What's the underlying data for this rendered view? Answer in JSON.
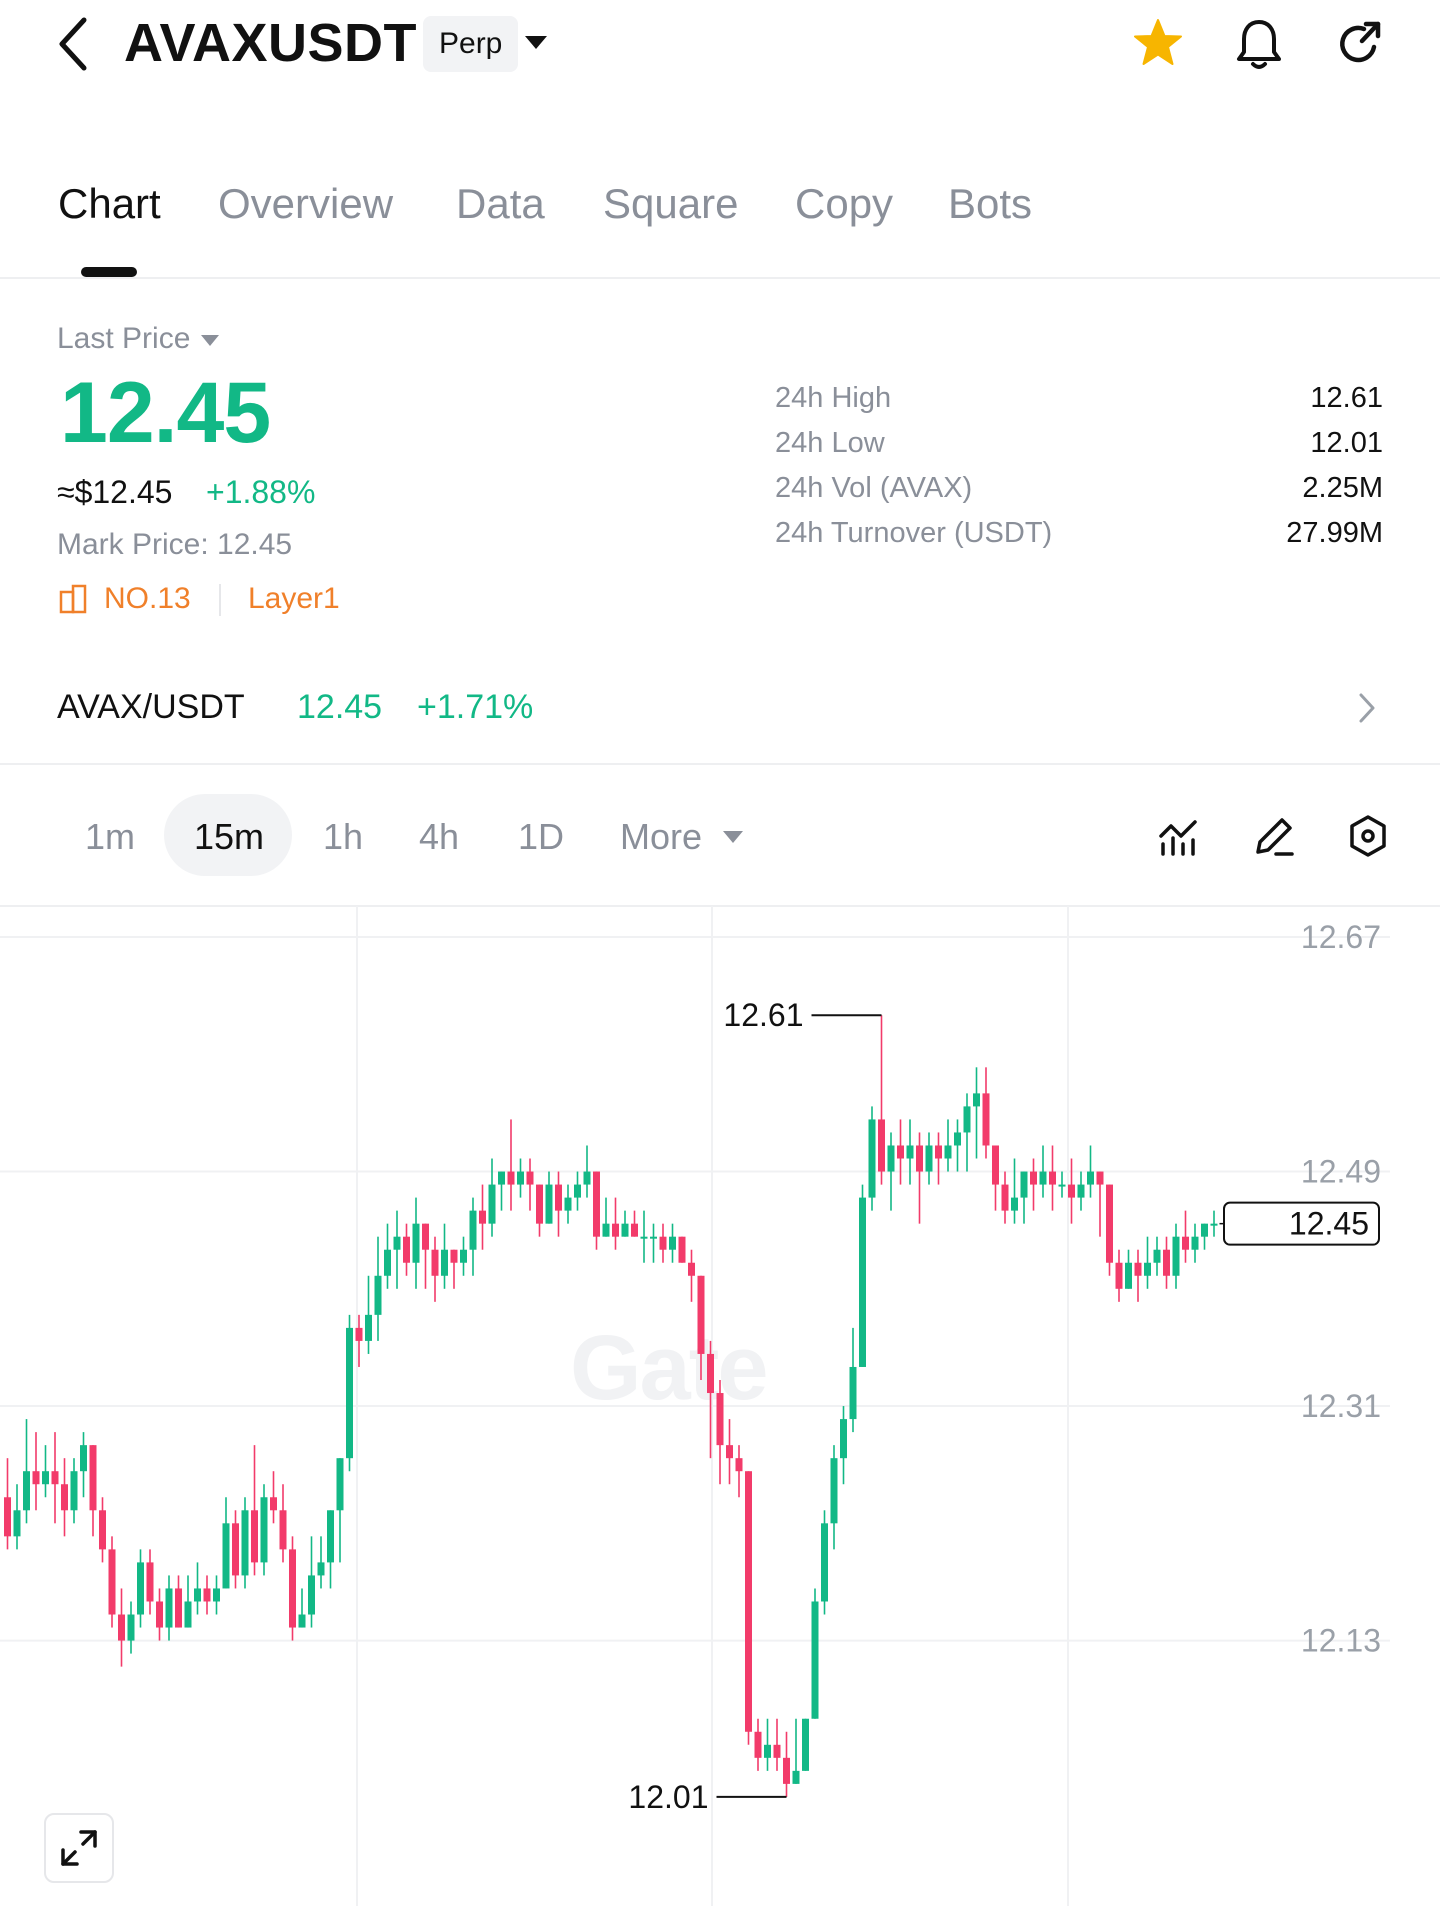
{
  "header": {
    "symbol": "AVAXUSDT",
    "contract_type": "Perp",
    "icons": [
      "back-icon",
      "star-icon",
      "bell-icon",
      "share-icon"
    ],
    "favorite_color": "#f7b500"
  },
  "tabs": [
    {
      "label": "Chart",
      "active": true
    },
    {
      "label": "Overview",
      "active": false
    },
    {
      "label": "Data",
      "active": false
    },
    {
      "label": "Square",
      "active": false
    },
    {
      "label": "Copy",
      "active": false
    },
    {
      "label": "Bots",
      "active": false
    }
  ],
  "price": {
    "label": "Last Price",
    "last": "12.45",
    "usd": "≈$12.45",
    "change": "+1.88%",
    "mark_price": "Mark Price:  12.45",
    "rank": "NO.13",
    "sector": "Layer1",
    "up_color": "#12b886",
    "tag_color": "#f0802a"
  },
  "stats": [
    {
      "label": "24h  High",
      "value": "12.61"
    },
    {
      "label": "24h  Low",
      "value": "12.01"
    },
    {
      "label": "24h  Vol (AVAX)",
      "value": "2.25M"
    },
    {
      "label": "24h  Turnover (USDT)",
      "value": "27.99M"
    }
  ],
  "spot": {
    "pair": "AVAX/USDT",
    "price": "12.45",
    "change": "+1.71%"
  },
  "intervals": [
    {
      "label": "1m",
      "active": false
    },
    {
      "label": "15m",
      "active": true
    },
    {
      "label": "1h",
      "active": false
    },
    {
      "label": "4h",
      "active": false
    },
    {
      "label": "1D",
      "active": false
    },
    {
      "label": "More",
      "active": false
    }
  ],
  "chart_tools": [
    "indicator-icon",
    "draw-icon",
    "settings-icon"
  ],
  "chart": {
    "watermark": "Gate",
    "expand_icon": "expand-icon"
  },
  "chart_data": {
    "type": "candlestick",
    "title": "",
    "interval": "15m",
    "y_ticks": [
      "12.67",
      "12.49",
      "12.31",
      "12.13"
    ],
    "ylim": [
      11.98,
      12.68
    ],
    "grid": true,
    "high_annotation": "12.61",
    "low_annotation": "12.01",
    "last_price_label": "12.45",
    "up_color": "#12b886",
    "down_color": "#f23b6a",
    "candles": [
      [
        12.24,
        12.21,
        12.27,
        12.2
      ],
      [
        12.21,
        12.23,
        12.25,
        12.2
      ],
      [
        12.23,
        12.26,
        12.3,
        12.22
      ],
      [
        12.26,
        12.25,
        12.29,
        12.23
      ],
      [
        12.25,
        12.26,
        12.28,
        12.24
      ],
      [
        12.26,
        12.25,
        12.29,
        12.22
      ],
      [
        12.25,
        12.23,
        12.27,
        12.21
      ],
      [
        12.23,
        12.26,
        12.27,
        12.22
      ],
      [
        12.26,
        12.28,
        12.29,
        12.24
      ],
      [
        12.28,
        12.23,
        12.28,
        12.21
      ],
      [
        12.23,
        12.2,
        12.24,
        12.19
      ],
      [
        12.2,
        12.15,
        12.21,
        12.14
      ],
      [
        12.15,
        12.13,
        12.17,
        12.11
      ],
      [
        12.13,
        12.15,
        12.16,
        12.12
      ],
      [
        12.15,
        12.19,
        12.2,
        12.14
      ],
      [
        12.19,
        12.16,
        12.2,
        12.15
      ],
      [
        12.16,
        12.14,
        12.17,
        12.13
      ],
      [
        12.14,
        12.17,
        12.18,
        12.13
      ],
      [
        12.17,
        12.14,
        12.18,
        12.14
      ],
      [
        12.14,
        12.16,
        12.18,
        12.14
      ],
      [
        12.16,
        12.17,
        12.19,
        12.15
      ],
      [
        12.17,
        12.16,
        12.18,
        12.15
      ],
      [
        12.16,
        12.17,
        12.18,
        12.15
      ],
      [
        12.17,
        12.22,
        12.24,
        12.17
      ],
      [
        12.22,
        12.18,
        12.23,
        12.17
      ],
      [
        12.18,
        12.23,
        12.24,
        12.17
      ],
      [
        12.23,
        12.19,
        12.28,
        12.18
      ],
      [
        12.19,
        12.24,
        12.25,
        12.18
      ],
      [
        12.24,
        12.23,
        12.26,
        12.22
      ],
      [
        12.23,
        12.2,
        12.25,
        12.19
      ],
      [
        12.2,
        12.14,
        12.21,
        12.13
      ],
      [
        12.14,
        12.15,
        12.17,
        12.14
      ],
      [
        12.15,
        12.18,
        12.21,
        12.14
      ],
      [
        12.18,
        12.19,
        12.21,
        12.17
      ],
      [
        12.19,
        12.23,
        12.23,
        12.17
      ],
      [
        12.23,
        12.27,
        12.27,
        12.19
      ],
      [
        12.27,
        12.37,
        12.38,
        12.26
      ],
      [
        12.37,
        12.36,
        12.38,
        12.34
      ],
      [
        12.36,
        12.38,
        12.41,
        12.35
      ],
      [
        12.38,
        12.41,
        12.44,
        12.36
      ],
      [
        12.41,
        12.43,
        12.45,
        12.4
      ],
      [
        12.43,
        12.44,
        12.46,
        12.4
      ],
      [
        12.44,
        12.42,
        12.45,
        12.41
      ],
      [
        12.42,
        12.45,
        12.47,
        12.4
      ],
      [
        12.45,
        12.43,
        12.45,
        12.4
      ],
      [
        12.43,
        12.41,
        12.44,
        12.39
      ],
      [
        12.41,
        12.43,
        12.45,
        12.4
      ],
      [
        12.43,
        12.42,
        12.43,
        12.4
      ],
      [
        12.42,
        12.43,
        12.44,
        12.41
      ],
      [
        12.43,
        12.46,
        12.47,
        12.41
      ],
      [
        12.46,
        12.45,
        12.48,
        12.43
      ],
      [
        12.45,
        12.48,
        12.5,
        12.44
      ],
      [
        12.48,
        12.49,
        12.49,
        12.46
      ],
      [
        12.49,
        12.48,
        12.53,
        12.46
      ],
      [
        12.48,
        12.49,
        12.5,
        12.47
      ],
      [
        12.49,
        12.48,
        12.5,
        12.46
      ],
      [
        12.48,
        12.45,
        12.48,
        12.44
      ],
      [
        12.45,
        12.48,
        12.49,
        12.45
      ],
      [
        12.48,
        12.46,
        12.49,
        12.44
      ],
      [
        12.46,
        12.47,
        12.48,
        12.45
      ],
      [
        12.47,
        12.48,
        12.49,
        12.46
      ],
      [
        12.48,
        12.49,
        12.51,
        12.47
      ],
      [
        12.49,
        12.44,
        12.49,
        12.43
      ],
      [
        12.44,
        12.45,
        12.47,
        12.44
      ],
      [
        12.45,
        12.44,
        12.47,
        12.43
      ],
      [
        12.44,
        12.45,
        12.46,
        12.44
      ],
      [
        12.45,
        12.44,
        12.46,
        12.44
      ],
      [
        12.44,
        12.44,
        12.46,
        12.42
      ],
      [
        12.44,
        12.44,
        12.45,
        12.42
      ],
      [
        12.44,
        12.43,
        12.45,
        12.42
      ],
      [
        12.43,
        12.44,
        12.45,
        12.42
      ],
      [
        12.44,
        12.42,
        12.44,
        12.42
      ],
      [
        12.42,
        12.41,
        12.43,
        12.39
      ],
      [
        12.41,
        12.35,
        12.41,
        12.33
      ],
      [
        12.35,
        12.32,
        12.36,
        12.27
      ],
      [
        12.32,
        12.28,
        12.33,
        12.25
      ],
      [
        12.28,
        12.27,
        12.3,
        12.25
      ],
      [
        12.27,
        12.26,
        12.28,
        12.24
      ],
      [
        12.26,
        12.06,
        12.26,
        12.05
      ],
      [
        12.06,
        12.04,
        12.07,
        12.03
      ],
      [
        12.04,
        12.05,
        12.07,
        12.03
      ],
      [
        12.05,
        12.04,
        12.07,
        12.03
      ],
      [
        12.04,
        12.02,
        12.06,
        12.01
      ],
      [
        12.02,
        12.03,
        12.07,
        12.02
      ],
      [
        12.03,
        12.07,
        12.07,
        12.03
      ],
      [
        12.07,
        12.16,
        12.17,
        12.07
      ],
      [
        12.16,
        12.22,
        12.23,
        12.15
      ],
      [
        12.22,
        12.27,
        12.28,
        12.2
      ],
      [
        12.27,
        12.3,
        12.31,
        12.25
      ],
      [
        12.3,
        12.34,
        12.37,
        12.29
      ],
      [
        12.34,
        12.47,
        12.48,
        12.34
      ],
      [
        12.47,
        12.53,
        12.54,
        12.46
      ],
      [
        12.53,
        12.49,
        12.61,
        12.48
      ],
      [
        12.49,
        12.51,
        12.52,
        12.46
      ],
      [
        12.51,
        12.5,
        12.53,
        12.48
      ],
      [
        12.5,
        12.51,
        12.53,
        12.48
      ],
      [
        12.51,
        12.49,
        12.52,
        12.45
      ],
      [
        12.49,
        12.51,
        12.52,
        12.48
      ],
      [
        12.51,
        12.5,
        12.52,
        12.48
      ],
      [
        12.5,
        12.51,
        12.53,
        12.49
      ],
      [
        12.51,
        12.52,
        12.53,
        12.49
      ],
      [
        12.52,
        12.54,
        12.55,
        12.49
      ],
      [
        12.54,
        12.55,
        12.57,
        12.5
      ],
      [
        12.55,
        12.51,
        12.57,
        12.5
      ],
      [
        12.51,
        12.48,
        12.51,
        12.46
      ],
      [
        12.48,
        12.46,
        12.49,
        12.45
      ],
      [
        12.46,
        12.47,
        12.5,
        12.45
      ],
      [
        12.47,
        12.49,
        12.49,
        12.45
      ],
      [
        12.49,
        12.48,
        12.5,
        12.46
      ],
      [
        12.48,
        12.49,
        12.51,
        12.47
      ],
      [
        12.49,
        12.48,
        12.51,
        12.46
      ],
      [
        12.48,
        12.48,
        12.49,
        12.47
      ],
      [
        12.48,
        12.47,
        12.5,
        12.45
      ],
      [
        12.47,
        12.48,
        12.49,
        12.46
      ],
      [
        12.48,
        12.49,
        12.51,
        12.47
      ],
      [
        12.49,
        12.48,
        12.49,
        12.44
      ],
      [
        12.48,
        12.42,
        12.48,
        12.41
      ],
      [
        12.42,
        12.4,
        12.43,
        12.39
      ],
      [
        12.4,
        12.42,
        12.43,
        12.4
      ],
      [
        12.42,
        12.41,
        12.43,
        12.39
      ],
      [
        12.41,
        12.42,
        12.44,
        12.4
      ],
      [
        12.42,
        12.43,
        12.44,
        12.41
      ],
      [
        12.43,
        12.41,
        12.44,
        12.4
      ],
      [
        12.41,
        12.44,
        12.45,
        12.4
      ],
      [
        12.44,
        12.43,
        12.46,
        12.42
      ],
      [
        12.43,
        12.44,
        12.45,
        12.42
      ],
      [
        12.44,
        12.45,
        12.45,
        12.43
      ],
      [
        12.45,
        12.45,
        12.46,
        12.44
      ]
    ]
  }
}
